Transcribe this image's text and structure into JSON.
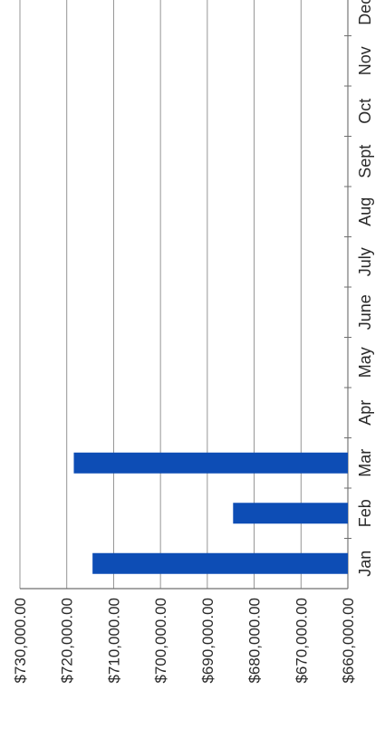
{
  "chart_data": {
    "type": "bar",
    "orientation": "rotated",
    "categories": [
      "Jan",
      "Feb",
      "Mar",
      "Apr",
      "May",
      "June",
      "July",
      "Aug",
      "Sept",
      "Oct",
      "Nov",
      "Dec"
    ],
    "values": [
      714500,
      684500,
      718500,
      null,
      null,
      null,
      null,
      null,
      null,
      null,
      null,
      null
    ],
    "ylim": [
      660000,
      730000
    ],
    "yticks": [
      660000,
      670000,
      680000,
      690000,
      700000,
      710000,
      720000,
      730000
    ],
    "ytick_labels": [
      "$660,000.00",
      "$670,000.00",
      "$680,000.00",
      "$690,000.00",
      "$700,000.00",
      "$710,000.00",
      "$720,000.00",
      "$730,000.00"
    ],
    "grid": true,
    "colors": {
      "bar": "#0d4db5",
      "grid": "#8a8a8a",
      "axis": "#6f6f6f",
      "text": "#2a2a2a"
    }
  }
}
